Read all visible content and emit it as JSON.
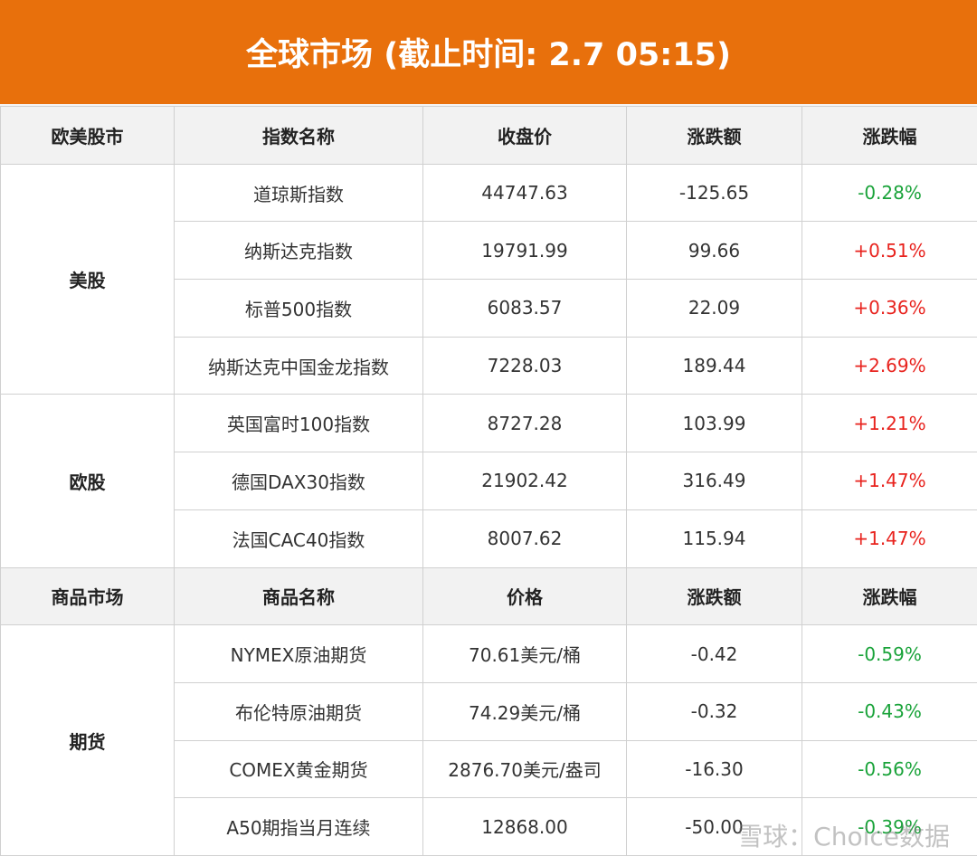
{
  "title": "全球市场 (截止时间: 2.7 05:15)",
  "sections": [
    {
      "header": [
        "欧美股市",
        "指数名称",
        "收盘价",
        "涨跌额",
        "涨跌幅"
      ],
      "groups": [
        {
          "name": "美股",
          "rows": [
            [
              "道琼斯指数",
              "44747.63",
              "-125.65",
              "-0.28%"
            ],
            [
              "纳斯达克指数",
              "19791.99",
              "99.66",
              "+0.51%"
            ],
            [
              "标普500指数",
              "6083.57",
              "22.09",
              "+0.36%"
            ],
            [
              "纳斯达克中国金龙指数",
              "7228.03",
              "189.44",
              "+2.69%"
            ]
          ]
        },
        {
          "name": "欧股",
          "rows": [
            [
              "英国富时100指数",
              "8727.28",
              "103.99",
              "+1.21%"
            ],
            [
              "德国DAX30指数",
              "21902.42",
              "316.49",
              "+1.47%"
            ],
            [
              "法国CAC40指数",
              "8007.62",
              "115.94",
              "+1.47%"
            ]
          ]
        }
      ]
    },
    {
      "header": [
        "商品市场",
        "商品名称",
        "价格",
        "涨跌额",
        "涨跌幅"
      ],
      "groups": [
        {
          "name": "期货",
          "rows": [
            [
              "NYMEX原油期货",
              "70.61美元/桶",
              "-0.42",
              "-0.59%"
            ],
            [
              "布伦特原油期货",
              "74.29美元/桶",
              "-0.32",
              "-0.43%"
            ],
            [
              "COMEX黄金期货",
              "2876.70美元/盎司",
              "-16.30",
              "-0.56%"
            ],
            [
              "A50期指当月连续",
              "12868.00",
              "-50.00",
              "-0.39%"
            ]
          ]
        }
      ]
    }
  ],
  "watermark": "雪球：Choice数据"
}
